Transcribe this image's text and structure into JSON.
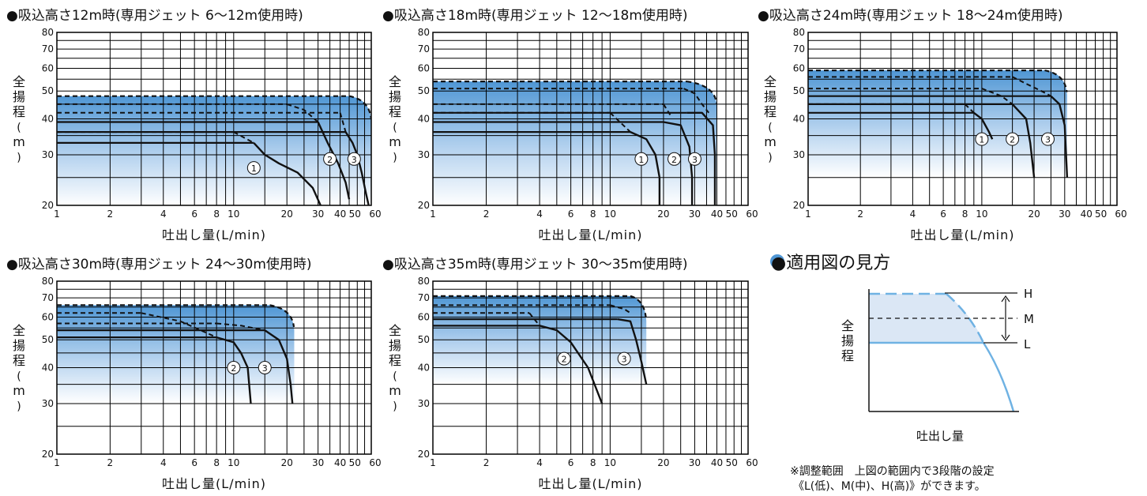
{
  "chart_data": [
    {
      "type": "line",
      "title": "●吸込高さ12m時(専用ジェット 6〜12m使用時)",
      "xlabel": "吐出し量(L/min)",
      "ylabel": "全揚程(m)",
      "xscale": "log",
      "yscale": "log",
      "xlim": [
        1,
        60
      ],
      "ylim": [
        20,
        80
      ],
      "xticks": [
        1,
        2,
        4,
        6,
        8,
        10,
        20,
        30,
        40,
        50,
        60
      ],
      "yticks": [
        20,
        30,
        40,
        50,
        60,
        70,
        80
      ],
      "grid": true,
      "region": {
        "max_head": 48,
        "flow_limit": 45,
        "end_flow": 60,
        "end_head": 20
      },
      "series": [
        {
          "name": "①",
          "label_at": [
            13,
            27
          ],
          "solid": {
            "head": 33,
            "from": 13,
            "curve": [
              [
                13,
                33
              ],
              [
                15,
                30
              ],
              [
                18,
                28
              ],
              [
                23,
                26
              ],
              [
                28,
                23
              ],
              [
                31,
                20
              ]
            ]
          },
          "dashed": [
            {
              "head": 36,
              "to": 10,
              "curve": [
                [
                  10,
                  36
                ],
                [
                  13,
                  33
                ]
              ]
            }
          ]
        },
        {
          "name": "②",
          "label_at": [
            35,
            29
          ],
          "solid": {
            "head": 39,
            "from": 30,
            "curve": [
              [
                30,
                39
              ],
              [
                34,
                33
              ],
              [
                39,
                28
              ],
              [
                43,
                24
              ],
              [
                45,
                21
              ]
            ]
          },
          "dashed": [
            {
              "head": 45,
              "to": 20,
              "curve": [
                [
                  20,
                  45
                ],
                [
                  25,
                  43
                ],
                [
                  30,
                  39
                ]
              ]
            }
          ]
        },
        {
          "name": "③",
          "label_at": [
            48,
            29
          ],
          "solid": {
            "head": 36,
            "from": 43,
            "curve": [
              [
                43,
                36
              ],
              [
                47,
                33
              ],
              [
                50,
                30
              ],
              [
                53,
                26
              ],
              [
                56,
                22
              ],
              [
                58,
                20
              ]
            ]
          },
          "dashed": [
            {
              "head": 42,
              "to": 40,
              "curve": [
                [
                  40,
                  42
                ],
                [
                  43,
                  36
                ]
              ]
            }
          ]
        }
      ]
    },
    {
      "type": "line",
      "title": "●吸込高さ18m時(専用ジェット 12〜18m使用時)",
      "xlabel": "吐出し量(L/min)",
      "ylabel": "全揚程(m)",
      "xscale": "log",
      "yscale": "log",
      "xlim": [
        1,
        60
      ],
      "ylim": [
        20,
        80
      ],
      "xticks": [
        1,
        2,
        4,
        6,
        8,
        10,
        20,
        30,
        40,
        50,
        60
      ],
      "yticks": [
        20,
        30,
        40,
        50,
        60,
        70,
        80
      ],
      "grid": true,
      "region": {
        "max_head": 54,
        "flow_limit": 27,
        "end_flow": 40,
        "end_head": 20
      },
      "series": [
        {
          "name": "①",
          "label_at": [
            15,
            29
          ],
          "solid": {
            "head": 36,
            "from": 13,
            "curve": [
              [
                13,
                36
              ],
              [
                16,
                34
              ],
              [
                18,
                30
              ],
              [
                19,
                25
              ],
              [
                19,
                20
              ]
            ]
          },
          "dashed": [
            {
              "head": 42,
              "to": 10,
              "curve": [
                [
                  10,
                  42
                ],
                [
                  13,
                  36
                ]
              ]
            }
          ]
        },
        {
          "name": "②",
          "label_at": [
            23,
            29
          ],
          "solid": {
            "head": 39,
            "from": 20,
            "curve": [
              [
                20,
                39
              ],
              [
                25,
                38
              ],
              [
                28,
                32
              ],
              [
                29,
                25
              ],
              [
                29,
                20
              ]
            ]
          },
          "dashed": [
            {
              "head": 45,
              "to": 20,
              "curve": [
                [
                  20,
                  45
                ],
                [
                  22,
                  41
                ]
              ]
            }
          ]
        },
        {
          "name": "③",
          "label_at": [
            30,
            29
          ],
          "solid": {
            "head": 42,
            "from": 27,
            "curve": [
              [
                27,
                42
              ],
              [
                33,
                42
              ],
              [
                38,
                38
              ],
              [
                39,
                30
              ],
              [
                39,
                20
              ]
            ]
          },
          "dashed": [
            {
              "head": 51,
              "to": 26,
              "curve": [
                [
                  26,
                  51
                ],
                [
                  30,
                  49
                ],
                [
                  33,
                  45
                ],
                [
                  36,
                  42
                ]
              ]
            }
          ]
        }
      ]
    },
    {
      "type": "line",
      "title": "●吸込高さ24m時(専用ジェット 18〜24m使用時)",
      "xlabel": "吐出し量(L/min)",
      "ylabel": "全揚程(m)",
      "xscale": "log",
      "yscale": "log",
      "xlim": [
        1,
        60
      ],
      "ylim": [
        20,
        80
      ],
      "xticks": [
        1,
        2,
        4,
        6,
        8,
        10,
        20,
        30,
        40,
        50,
        60
      ],
      "yticks": [
        20,
        30,
        40,
        50,
        60,
        70,
        80
      ],
      "grid": true,
      "region": {
        "max_head": 59,
        "flow_limit": 23,
        "end_flow": 31,
        "end_head": 25
      },
      "series": [
        {
          "name": "①",
          "label_at": [
            10,
            34
          ],
          "solid": {
            "head": 42,
            "from": 9,
            "curve": [
              [
                9,
                42
              ],
              [
                10,
                40
              ],
              [
                11,
                36
              ],
              [
                11.5,
                34
              ]
            ]
          },
          "dashed": [
            {
              "head": 45,
              "to": 8,
              "curve": [
                [
                  8,
                  45
                ],
                [
                  9,
                  42
                ]
              ]
            }
          ]
        },
        {
          "name": "②",
          "label_at": [
            15,
            34
          ],
          "solid": {
            "head": 45,
            "from": 15,
            "curve": [
              [
                15,
                45
              ],
              [
                18,
                40
              ],
              [
                19,
                33
              ],
              [
                20,
                25
              ]
            ]
          },
          "dashed": [
            {
              "head": 51,
              "to": 10,
              "curve": [
                [
                  10,
                  51
                ],
                [
                  13,
                  48
                ],
                [
                  15,
                  45
                ]
              ]
            }
          ]
        },
        {
          "name": "③",
          "label_at": [
            24,
            34
          ],
          "solid": {
            "head": 48,
            "from": 25,
            "curve": [
              [
                25,
                48
              ],
              [
                28,
                45
              ],
              [
                30,
                38
              ],
              [
                31,
                25
              ]
            ]
          },
          "dashed": [
            {
              "head": 56,
              "to": 15,
              "curve": [
                [
                  15,
                  56
                ],
                [
                  18,
                  53
                ],
                [
                  22,
                  50
                ],
                [
                  25,
                  48
                ]
              ]
            }
          ]
        }
      ]
    },
    {
      "type": "line",
      "title": "●吸込高さ30m時(専用ジェット 24〜30m使用時)",
      "xlabel": "吐出し量(L/min)",
      "ylabel": "全揚程(m)",
      "xscale": "log",
      "yscale": "log",
      "xlim": [
        1,
        60
      ],
      "ylim": [
        20,
        80
      ],
      "xticks": [
        1,
        2,
        4,
        6,
        8,
        10,
        20,
        30,
        40,
        50,
        60
      ],
      "yticks": [
        20,
        30,
        40,
        50,
        60,
        70,
        80
      ],
      "grid": true,
      "region": {
        "max_head": 66,
        "flow_limit": 16,
        "end_flow": 22,
        "end_head": 30
      },
      "series": [
        {
          "name": "②",
          "label_at": [
            10,
            40
          ],
          "solid": {
            "head": 51,
            "from": 8,
            "curve": [
              [
                8,
                51
              ],
              [
                10,
                49
              ],
              [
                11,
                45
              ],
              [
                12,
                40
              ],
              [
                12.5,
                30
              ]
            ]
          },
          "dashed": [
            {
              "head": 62,
              "to": 3,
              "curve": [
                [
                  3,
                  62
                ],
                [
                  5,
                  58
                ],
                [
                  8,
                  51
                ]
              ]
            }
          ]
        },
        {
          "name": "③",
          "label_at": [
            15,
            40
          ],
          "solid": {
            "head": 54,
            "from": 15,
            "curve": [
              [
                15,
                54
              ],
              [
                18,
                50
              ],
              [
                20,
                43
              ],
              [
                21,
                35
              ],
              [
                21.5,
                30
              ]
            ]
          },
          "dashed": [
            {
              "head": 57,
              "to": 8,
              "curve": [
                [
                  8,
                  57
                ],
                [
                  11,
                  56
                ],
                [
                  15,
                  54
                ]
              ]
            }
          ]
        }
      ]
    },
    {
      "type": "line",
      "title": "●吸込高さ35m時(専用ジェット 30〜35m使用時)",
      "xlabel": "吐出し量(L/min)",
      "ylabel": "全揚程(m)",
      "xscale": "log",
      "yscale": "log",
      "xlim": [
        1,
        60
      ],
      "ylim": [
        20,
        80
      ],
      "xticks": [
        1,
        2,
        4,
        6,
        8,
        10,
        20,
        30,
        40,
        50,
        60
      ],
      "yticks": [
        20,
        30,
        40,
        50,
        60,
        70,
        80
      ],
      "grid": true,
      "region": {
        "max_head": 71,
        "flow_limit": 13,
        "end_flow": 16,
        "end_head": 35
      },
      "series": [
        {
          "name": "②",
          "label_at": [
            5.5,
            43
          ],
          "solid": {
            "head": 56,
            "from": 4,
            "curve": [
              [
                4,
                56
              ],
              [
                5,
                54
              ],
              [
                6,
                49
              ],
              [
                7.5,
                40
              ],
              [
                9,
                30
              ]
            ]
          },
          "dashed": [
            {
              "head": 62,
              "to": 3.5,
              "curve": [
                [
                  3.5,
                  62
                ],
                [
                  4,
                  56
                ]
              ]
            }
          ]
        },
        {
          "name": "③",
          "label_at": [
            12,
            43
          ],
          "solid": {
            "head": 59,
            "from": 11,
            "curve": [
              [
                11,
                59
              ],
              [
                13,
                58
              ],
              [
                14,
                50
              ],
              [
                15,
                42
              ],
              [
                16,
                35
              ]
            ]
          },
          "dashed": [
            {
              "head": 66,
              "to": 10,
              "curve": [
                [
                  10,
                  66
                ],
                [
                  12,
                  64
                ],
                [
                  13,
                  62
                ]
              ]
            }
          ]
        }
      ]
    }
  ],
  "legend": {
    "title": "●適用図の見方",
    "ylabel": "全揚程",
    "xlabel": "吐出し量",
    "H": "H",
    "M": "M",
    "L": "L",
    "fill_color": "#dbe7f5",
    "line_color": "#6fb2e3"
  },
  "note": {
    "line1": "※調整範囲　上図の範囲内で3段階の設定",
    "line2": "《L(低)、M(中)、H(高)》ができます。"
  },
  "colors": {
    "fill_top": "#4f96d4",
    "fill_bottom": "#ffffff",
    "curve": "#111111",
    "grid": "#000000"
  }
}
